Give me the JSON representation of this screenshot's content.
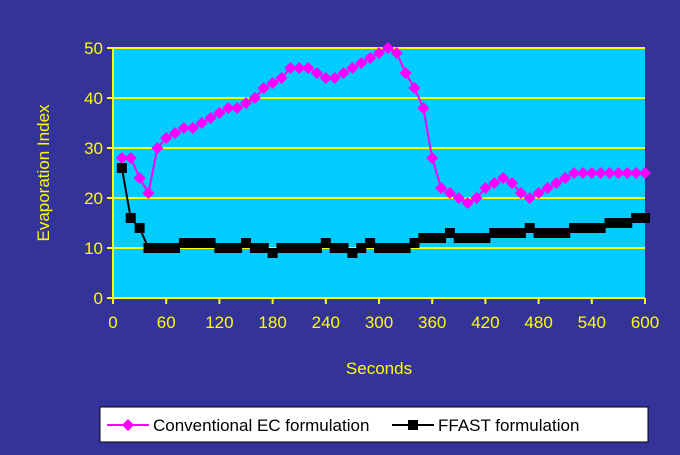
{
  "chart_data": {
    "type": "line",
    "title": "",
    "xlabel": "Seconds",
    "ylabel": "Evaporation Index",
    "xlim": [
      0,
      600
    ],
    "ylim": [
      0,
      50
    ],
    "x_ticks": [
      0,
      60,
      120,
      180,
      240,
      300,
      360,
      420,
      480,
      540,
      600
    ],
    "y_ticks": [
      0,
      10,
      20,
      30,
      40,
      50
    ],
    "grid": "horizontal",
    "legend_position": "bottom",
    "colors": {
      "background": "#333399",
      "plot_area": "#00CCFF",
      "gridline": "#FFFF00",
      "axis_text": "#FFFF00",
      "legend_background": "#FFFFFF"
    },
    "series": [
      {
        "name": "Conventional EC formulation",
        "color": "#FF00FF",
        "marker": "diamond",
        "x": [
          10,
          20,
          30,
          40,
          50,
          60,
          70,
          80,
          90,
          100,
          110,
          120,
          130,
          140,
          150,
          160,
          170,
          180,
          190,
          200,
          210,
          220,
          230,
          240,
          250,
          260,
          270,
          280,
          290,
          300,
          310,
          320,
          330,
          340,
          350,
          360,
          370,
          380,
          390,
          400,
          410,
          420,
          430,
          440,
          450,
          460,
          470,
          480,
          490,
          500,
          510,
          520,
          530,
          540,
          550,
          560,
          570,
          580,
          590,
          600
        ],
        "values": [
          28,
          28,
          24,
          21,
          30,
          32,
          33,
          34,
          34,
          35,
          36,
          37,
          38,
          38,
          39,
          40,
          42,
          43,
          44,
          46,
          46,
          46,
          45,
          44,
          44,
          45,
          46,
          47,
          48,
          49,
          50,
          49,
          45,
          42,
          38,
          28,
          22,
          21,
          20,
          19,
          20,
          22,
          23,
          24,
          23,
          21,
          20,
          21,
          22,
          23,
          24,
          25,
          25,
          25,
          25,
          25,
          25,
          25,
          25,
          25
        ]
      },
      {
        "name": "FFAST formulation",
        "color": "#000000",
        "marker": "square",
        "x": [
          10,
          20,
          30,
          40,
          50,
          60,
          70,
          80,
          90,
          100,
          110,
          120,
          130,
          140,
          150,
          160,
          170,
          180,
          190,
          200,
          210,
          220,
          230,
          240,
          250,
          260,
          270,
          280,
          290,
          300,
          310,
          320,
          330,
          340,
          350,
          360,
          370,
          380,
          390,
          400,
          410,
          420,
          430,
          440,
          450,
          460,
          470,
          480,
          490,
          500,
          510,
          520,
          530,
          540,
          550,
          560,
          570,
          580,
          590,
          600
        ],
        "values": [
          26,
          16,
          14,
          10,
          10,
          10,
          10,
          11,
          11,
          11,
          11,
          10,
          10,
          10,
          11,
          10,
          10,
          9,
          10,
          10,
          10,
          10,
          10,
          11,
          10,
          10,
          9,
          10,
          11,
          10,
          10,
          10,
          10,
          11,
          12,
          12,
          12,
          13,
          12,
          12,
          12,
          12,
          13,
          13,
          13,
          13,
          14,
          13,
          13,
          13,
          13,
          14,
          14,
          14,
          14,
          15,
          15,
          15,
          16,
          16
        ]
      }
    ]
  }
}
